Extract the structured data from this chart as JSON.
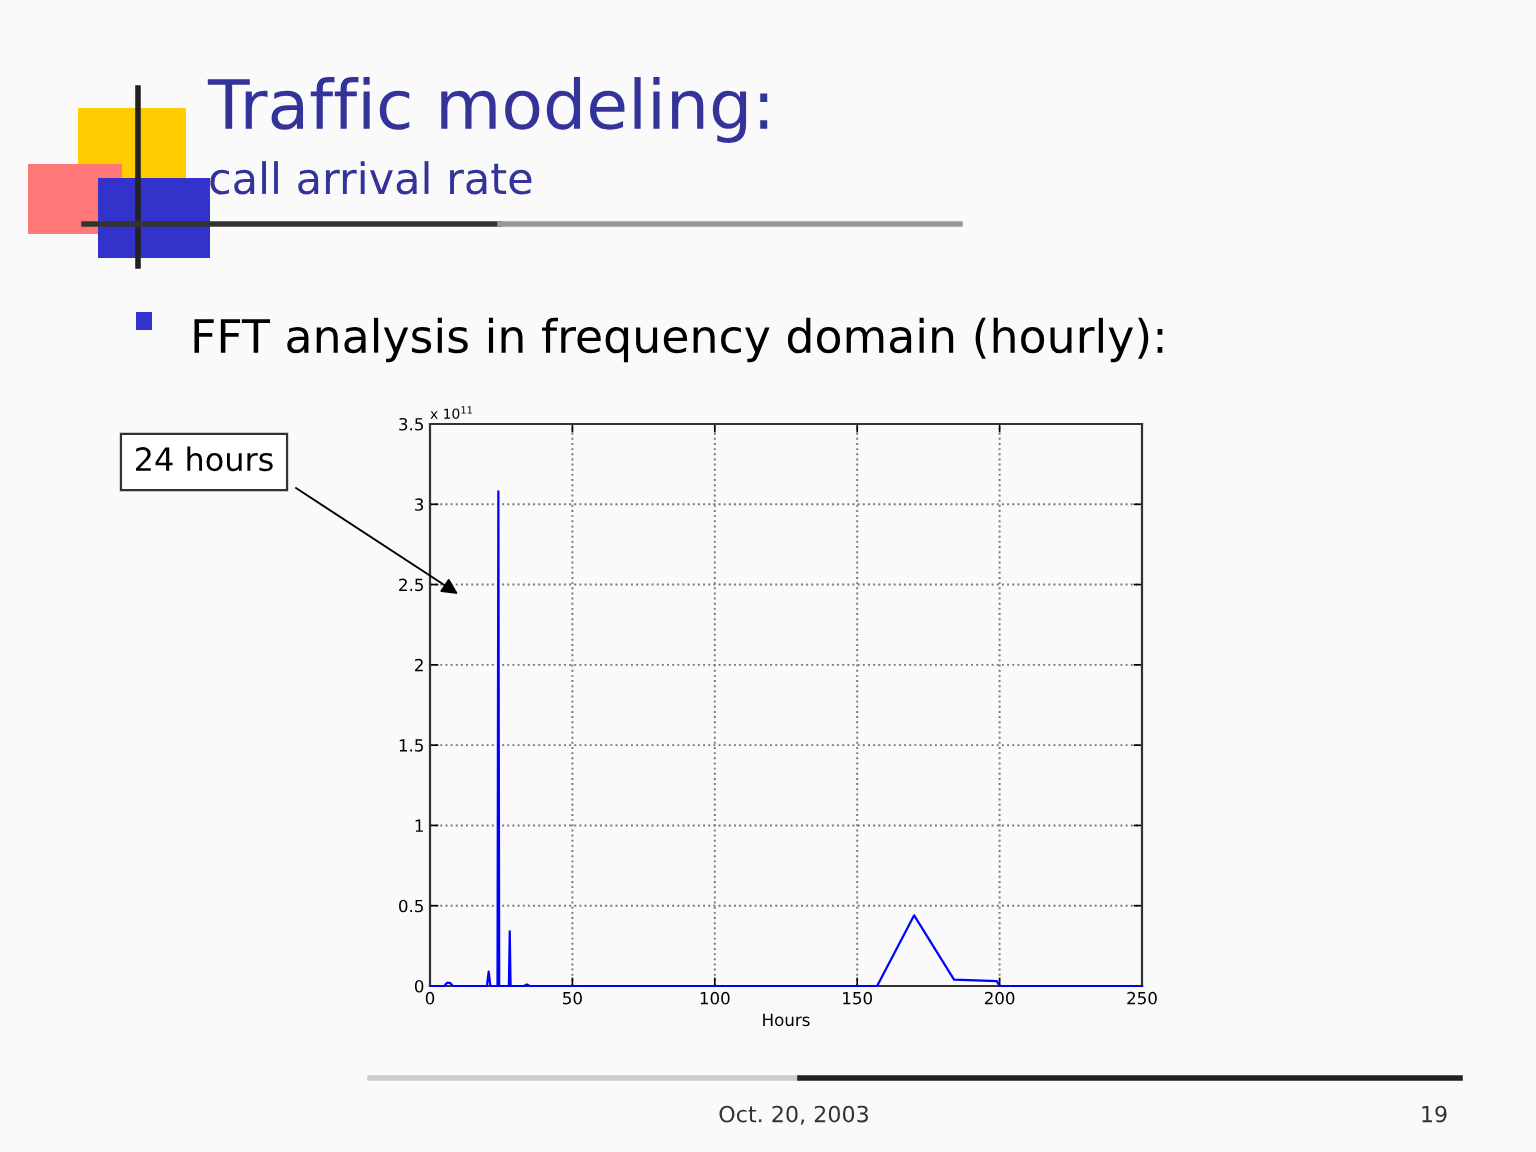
{
  "chart_data": {
    "type": "line",
    "title": "Traffic modeling:",
    "subtitle": "call arrival rate",
    "xlabel": "Hours",
    "annotations": [
      "x 10$^{11}$",
      "FFT analysis in frequency domain (hourly):",
      "Oct. 20, 2003",
      "19",
      "24 hours"
    ],
    "x": [
      0.5,
      5,
      6,
      7,
      8,
      20,
      20.6,
      21.2,
      23.7,
      24,
      24.3,
      27.7,
      28,
      28.3,
      33,
      34,
      35,
      100,
      157,
      170,
      184,
      199,
      200,
      250
    ],
    "values": [
      0,
      0,
      0.02,
      0.02,
      0,
      0,
      0.09,
      0,
      0,
      3.08,
      0,
      0,
      0.34,
      0,
      0,
      0.01,
      0,
      0,
      0,
      0.44,
      0.04,
      0.03,
      0,
      0
    ],
    "color": "#0000ff",
    "line_style": "solid",
    "xlim": [
      0,
      250
    ],
    "xticks": [
      0,
      50,
      100,
      150,
      200,
      250
    ],
    "ylim": [
      0,
      3.5
    ],
    "yticks": [
      0,
      0.5,
      1,
      1.5,
      2,
      2.5,
      3,
      3.5
    ],
    "grid": true
  }
}
